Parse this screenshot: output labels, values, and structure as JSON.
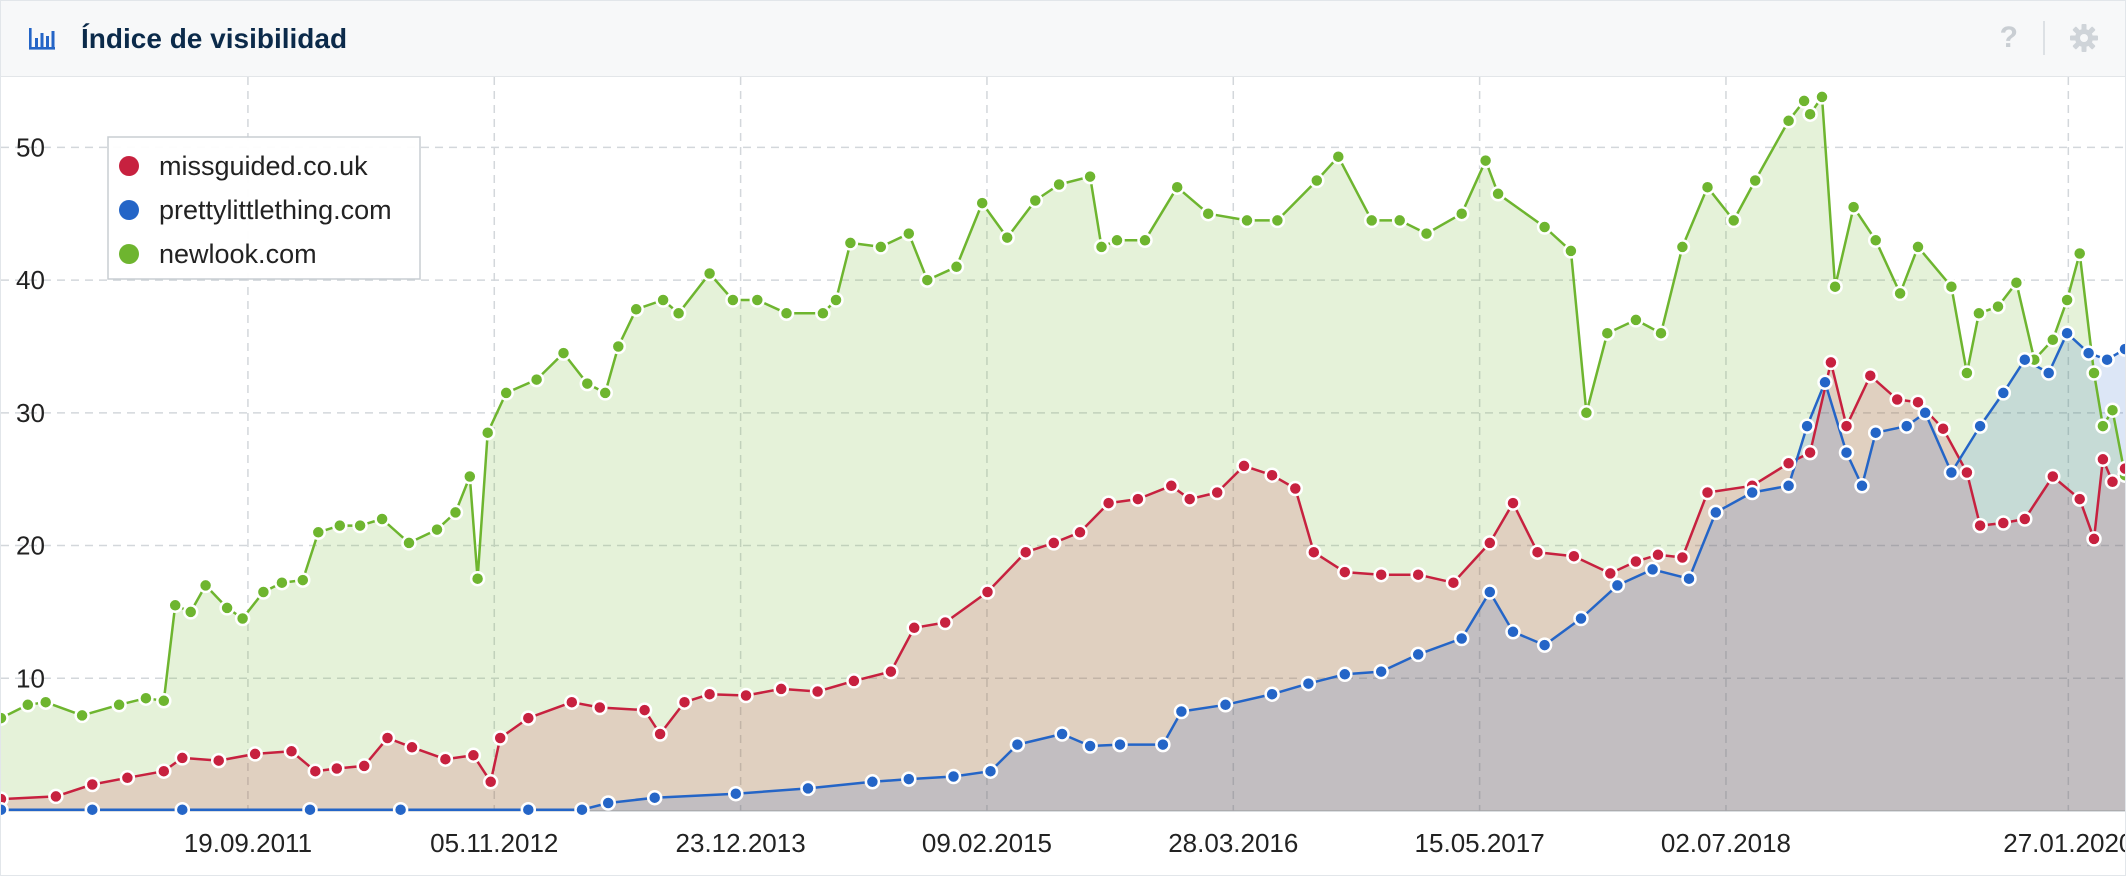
{
  "header": {
    "title": "Índice de visibilidad",
    "help_label": "?",
    "chart_icon": "bar-chart-icon",
    "help_icon": "help-icon",
    "settings_icon": "gear-icon"
  },
  "chart_data": {
    "type": "area",
    "title": "Índice de visibilidad",
    "xlabel": "",
    "ylabel": "",
    "ylim": [
      0,
      55
    ],
    "yticks": [
      10,
      20,
      30,
      40,
      50
    ],
    "x_range": [
      "2010-08-01",
      "2020-05-01"
    ],
    "xticks": [
      "19.09.2011",
      "05.11.2012",
      "23.12.2013",
      "09.02.2015",
      "28.03.2016",
      "15.05.2017",
      "02.07.2018",
      "27.01.2020"
    ],
    "grid": true,
    "legend": "top-left",
    "series": [
      {
        "name": "newlook.com",
        "color": "#6eb52f",
        "values": [
          [
            "2010-08-01",
            7
          ],
          [
            "2010-09-15",
            8
          ],
          [
            "2010-10-15",
            8.2
          ],
          [
            "2010-12-15",
            7.2
          ],
          [
            "2011-02-15",
            8
          ],
          [
            "2011-04-01",
            8.5
          ],
          [
            "2011-05-01",
            8.3
          ],
          [
            "2011-05-20",
            15.5
          ],
          [
            "2011-06-15",
            15
          ],
          [
            "2011-07-10",
            17
          ],
          [
            "2011-08-15",
            15.3
          ],
          [
            "2011-09-10",
            14.5
          ],
          [
            "2011-10-15",
            16.5
          ],
          [
            "2011-11-15",
            17.2
          ],
          [
            "2011-12-20",
            17.4
          ],
          [
            "2012-01-15",
            21
          ],
          [
            "2012-02-20",
            21.5
          ],
          [
            "2012-03-25",
            21.5
          ],
          [
            "2012-05-01",
            22
          ],
          [
            "2012-06-15",
            20.2
          ],
          [
            "2012-08-01",
            21.2
          ],
          [
            "2012-09-01",
            22.5
          ],
          [
            "2012-09-25",
            25.2
          ],
          [
            "2012-10-08",
            17.5
          ],
          [
            "2012-10-25",
            28.5
          ],
          [
            "2012-11-25",
            31.5
          ],
          [
            "2013-01-15",
            32.5
          ],
          [
            "2013-03-01",
            34.5
          ],
          [
            "2013-04-10",
            32.2
          ],
          [
            "2013-05-10",
            31.5
          ],
          [
            "2013-06-01",
            35
          ],
          [
            "2013-07-01",
            37.8
          ],
          [
            "2013-08-15",
            38.5
          ],
          [
            "2013-09-10",
            37.5
          ],
          [
            "2013-11-01",
            40.5
          ],
          [
            "2013-12-10",
            38.5
          ],
          [
            "2014-01-20",
            38.5
          ],
          [
            "2014-03-10",
            37.5
          ],
          [
            "2014-05-10",
            37.5
          ],
          [
            "2014-06-01",
            38.5
          ],
          [
            "2014-06-25",
            42.8
          ],
          [
            "2014-08-15",
            42.5
          ],
          [
            "2014-10-01",
            43.5
          ],
          [
            "2014-11-01",
            40
          ],
          [
            "2014-12-20",
            41
          ],
          [
            "2015-02-01",
            45.8
          ],
          [
            "2015-03-15",
            43.2
          ],
          [
            "2015-05-01",
            46
          ],
          [
            "2015-06-10",
            47.2
          ],
          [
            "2015-08-01",
            47.8
          ],
          [
            "2015-08-20",
            42.5
          ],
          [
            "2015-09-15",
            43
          ],
          [
            "2015-11-01",
            43
          ],
          [
            "2015-12-25",
            47
          ],
          [
            "2016-02-15",
            45
          ],
          [
            "2016-04-20",
            44.5
          ],
          [
            "2016-06-10",
            44.5
          ],
          [
            "2016-08-15",
            47.5
          ],
          [
            "2016-09-20",
            49.3
          ],
          [
            "2016-11-15",
            44.5
          ],
          [
            "2017-01-01",
            44.5
          ],
          [
            "2017-02-15",
            43.5
          ],
          [
            "2017-04-15",
            45
          ],
          [
            "2017-05-25",
            49
          ],
          [
            "2017-06-15",
            46.5
          ],
          [
            "2017-09-01",
            44
          ],
          [
            "2017-10-15",
            42.2
          ],
          [
            "2017-11-10",
            30
          ],
          [
            "2017-12-15",
            36
          ],
          [
            "2018-02-01",
            37
          ],
          [
            "2018-03-15",
            36
          ],
          [
            "2018-04-20",
            42.5
          ],
          [
            "2018-06-01",
            47
          ],
          [
            "2018-07-15",
            44.5
          ],
          [
            "2018-08-20",
            47.5
          ],
          [
            "2018-10-15",
            52
          ],
          [
            "2018-11-10",
            53.5
          ],
          [
            "2018-11-20",
            52.5
          ],
          [
            "2018-12-10",
            53.8
          ],
          [
            "2019-01-01",
            39.5
          ],
          [
            "2019-02-01",
            45.5
          ],
          [
            "2019-03-10",
            43
          ],
          [
            "2019-04-20",
            39
          ],
          [
            "2019-05-20",
            42.5
          ],
          [
            "2019-07-15",
            39.5
          ],
          [
            "2019-08-10",
            33
          ],
          [
            "2019-08-30",
            37.5
          ],
          [
            "2019-10-01",
            38
          ],
          [
            "2019-11-01",
            39.8
          ],
          [
            "2019-12-01",
            34
          ],
          [
            "2020-01-01",
            35.5
          ],
          [
            "2020-01-25",
            38.5
          ],
          [
            "2020-02-15",
            42
          ],
          [
            "2020-03-10",
            33
          ],
          [
            "2020-03-25",
            29
          ],
          [
            "2020-04-10",
            30.2
          ],
          [
            "2020-05-01",
            25.3
          ]
        ]
      },
      {
        "name": "missguided.co.uk",
        "color": "#c7213f",
        "values": [
          [
            "2010-08-01",
            0.9
          ],
          [
            "2010-11-01",
            1.1
          ],
          [
            "2011-01-01",
            2
          ],
          [
            "2011-03-01",
            2.5
          ],
          [
            "2011-05-01",
            3
          ],
          [
            "2011-06-01",
            4
          ],
          [
            "2011-08-01",
            3.8
          ],
          [
            "2011-10-01",
            4.3
          ],
          [
            "2011-12-01",
            4.5
          ],
          [
            "2012-01-10",
            3
          ],
          [
            "2012-02-15",
            3.2
          ],
          [
            "2012-04-01",
            3.4
          ],
          [
            "2012-05-10",
            5.5
          ],
          [
            "2012-06-20",
            4.8
          ],
          [
            "2012-08-15",
            3.9
          ],
          [
            "2012-10-01",
            4.2
          ],
          [
            "2012-10-30",
            2.2
          ],
          [
            "2012-11-15",
            5.5
          ],
          [
            "2013-01-01",
            7
          ],
          [
            "2013-03-15",
            8.2
          ],
          [
            "2013-05-01",
            7.8
          ],
          [
            "2013-07-15",
            7.6
          ],
          [
            "2013-08-10",
            5.8
          ],
          [
            "2013-09-20",
            8.2
          ],
          [
            "2013-11-01",
            8.8
          ],
          [
            "2014-01-01",
            8.7
          ],
          [
            "2014-03-01",
            9.2
          ],
          [
            "2014-05-01",
            9
          ],
          [
            "2014-07-01",
            9.8
          ],
          [
            "2014-09-01",
            10.5
          ],
          [
            "2014-10-10",
            13.8
          ],
          [
            "2014-12-01",
            14.2
          ],
          [
            "2015-02-10",
            16.5
          ],
          [
            "2015-04-15",
            19.5
          ],
          [
            "2015-06-01",
            20.2
          ],
          [
            "2015-07-15",
            21
          ],
          [
            "2015-09-01",
            23.2
          ],
          [
            "2015-10-20",
            23.5
          ],
          [
            "2015-12-15",
            24.5
          ],
          [
            "2016-01-15",
            23.5
          ],
          [
            "2016-03-01",
            24
          ],
          [
            "2016-04-15",
            26
          ],
          [
            "2016-06-01",
            25.3
          ],
          [
            "2016-07-10",
            24.3
          ],
          [
            "2016-08-10",
            19.5
          ],
          [
            "2016-10-01",
            18
          ],
          [
            "2016-12-01",
            17.8
          ],
          [
            "2017-02-01",
            17.8
          ],
          [
            "2017-04-01",
            17.2
          ],
          [
            "2017-06-01",
            20.2
          ],
          [
            "2017-07-10",
            23.2
          ],
          [
            "2017-08-20",
            19.5
          ],
          [
            "2017-10-20",
            19.2
          ],
          [
            "2017-12-20",
            17.9
          ],
          [
            "2018-02-01",
            18.8
          ],
          [
            "2018-03-10",
            19.3
          ],
          [
            "2018-04-20",
            19.1
          ],
          [
            "2018-06-01",
            24
          ],
          [
            "2018-08-15",
            24.5
          ],
          [
            "2018-10-15",
            26.2
          ],
          [
            "2018-11-20",
            27
          ],
          [
            "2018-12-25",
            33.8
          ],
          [
            "2019-01-20",
            29
          ],
          [
            "2019-03-01",
            32.8
          ],
          [
            "2019-04-15",
            31
          ],
          [
            "2019-05-20",
            30.8
          ],
          [
            "2019-07-01",
            28.8
          ],
          [
            "2019-08-10",
            25.5
          ],
          [
            "2019-09-01",
            21.5
          ],
          [
            "2019-10-10",
            21.7
          ],
          [
            "2019-11-15",
            22
          ],
          [
            "2020-01-01",
            25.2
          ],
          [
            "2020-02-15",
            23.5
          ],
          [
            "2020-03-10",
            20.5
          ],
          [
            "2020-03-25",
            26.5
          ],
          [
            "2020-04-10",
            24.8
          ],
          [
            "2020-05-01",
            25.8
          ]
        ]
      },
      {
        "name": "prettylittlething.com",
        "color": "#2465c7",
        "values": [
          [
            "2010-08-01",
            0.1
          ],
          [
            "2011-01-01",
            0.1
          ],
          [
            "2011-06-01",
            0.1
          ],
          [
            "2012-01-01",
            0.1
          ],
          [
            "2012-06-01",
            0.1
          ],
          [
            "2013-01-01",
            0.1
          ],
          [
            "2013-04-01",
            0.1
          ],
          [
            "2013-05-15",
            0.6
          ],
          [
            "2013-08-01",
            1
          ],
          [
            "2013-12-15",
            1.3
          ],
          [
            "2014-04-15",
            1.7
          ],
          [
            "2014-08-01",
            2.2
          ],
          [
            "2014-10-01",
            2.4
          ],
          [
            "2014-12-15",
            2.6
          ],
          [
            "2015-02-15",
            3
          ],
          [
            "2015-04-01",
            5
          ],
          [
            "2015-06-15",
            5.8
          ],
          [
            "2015-08-01",
            4.9
          ],
          [
            "2015-09-20",
            5
          ],
          [
            "2015-12-01",
            5
          ],
          [
            "2016-01-01",
            7.5
          ],
          [
            "2016-03-15",
            8
          ],
          [
            "2016-06-01",
            8.8
          ],
          [
            "2016-08-01",
            9.6
          ],
          [
            "2016-10-01",
            10.3
          ],
          [
            "2016-12-01",
            10.5
          ],
          [
            "2017-02-01",
            11.8
          ],
          [
            "2017-04-15",
            13
          ],
          [
            "2017-06-01",
            16.5
          ],
          [
            "2017-07-10",
            13.5
          ],
          [
            "2017-09-01",
            12.5
          ],
          [
            "2017-11-01",
            14.5
          ],
          [
            "2018-01-01",
            17
          ],
          [
            "2018-03-01",
            18.2
          ],
          [
            "2018-05-01",
            17.5
          ],
          [
            "2018-06-15",
            22.5
          ],
          [
            "2018-08-15",
            24
          ],
          [
            "2018-10-15",
            24.5
          ],
          [
            "2018-11-15",
            29
          ],
          [
            "2018-12-15",
            32.3
          ],
          [
            "2019-01-20",
            27
          ],
          [
            "2019-02-15",
            24.5
          ],
          [
            "2019-03-10",
            28.5
          ],
          [
            "2019-05-01",
            29
          ],
          [
            "2019-06-01",
            30
          ],
          [
            "2019-07-15",
            25.5
          ],
          [
            "2019-09-01",
            29
          ],
          [
            "2019-10-10",
            31.5
          ],
          [
            "2019-11-15",
            34
          ],
          [
            "2019-12-25",
            33
          ],
          [
            "2020-01-25",
            36
          ],
          [
            "2020-03-01",
            34.5
          ],
          [
            "2020-04-01",
            34
          ],
          [
            "2020-05-01",
            34.8
          ]
        ]
      }
    ]
  }
}
